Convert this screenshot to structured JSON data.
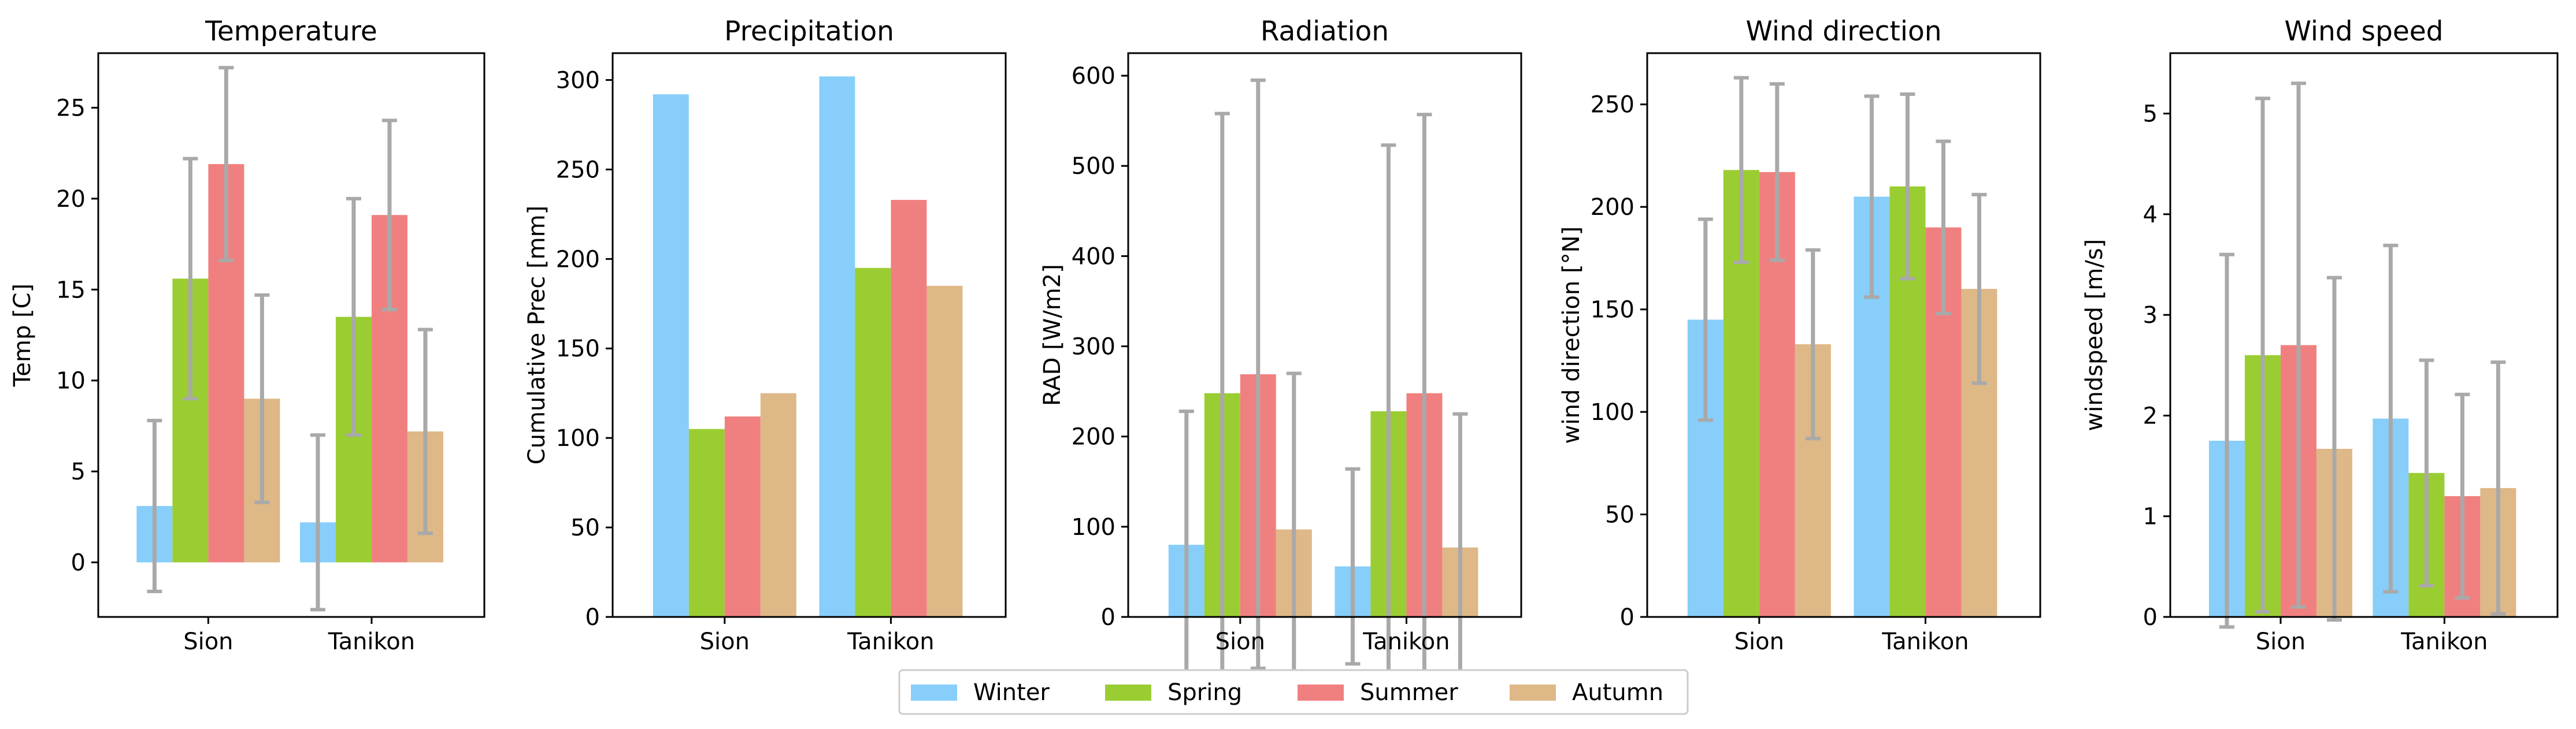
{
  "colors": {
    "Winter": "#87CEFA",
    "Spring": "#9ACD32",
    "Summer": "#F08080",
    "Autumn": "#DEB887",
    "errorbar": "#A9A9A9"
  },
  "legend": {
    "placement": "bottom-center",
    "items": [
      "Winter",
      "Spring",
      "Summer",
      "Autumn"
    ]
  },
  "chart_data": [
    {
      "type": "bar",
      "title": "Temperature",
      "ylabel": "Temp [C]",
      "categories": [
        "Sion",
        "Tanikon"
      ],
      "ylim": [
        -3,
        28
      ],
      "yticks": [
        0,
        5,
        10,
        15,
        20,
        25
      ],
      "series": [
        {
          "name": "Winter",
          "values": [
            3.1,
            2.2
          ],
          "err": [
            4.7,
            4.8
          ]
        },
        {
          "name": "Spring",
          "values": [
            15.6,
            13.5
          ],
          "err": [
            6.6,
            6.5
          ]
        },
        {
          "name": "Summer",
          "values": [
            21.9,
            19.1
          ],
          "err": [
            5.3,
            5.2
          ]
        },
        {
          "name": "Autumn",
          "values": [
            9.0,
            7.2
          ],
          "err": [
            5.7,
            5.6
          ]
        }
      ]
    },
    {
      "type": "bar",
      "title": "Precipitation",
      "ylabel": "Cumulative Prec [mm]",
      "categories": [
        "Sion",
        "Tanikon"
      ],
      "ylim": [
        0,
        315
      ],
      "yticks": [
        0,
        50,
        100,
        150,
        200,
        250,
        300
      ],
      "series": [
        {
          "name": "Winter",
          "values": [
            292,
            302
          ],
          "err": null
        },
        {
          "name": "Spring",
          "values": [
            105,
            195
          ],
          "err": null
        },
        {
          "name": "Summer",
          "values": [
            112,
            233
          ],
          "err": null
        },
        {
          "name": "Autumn",
          "values": [
            125,
            185
          ],
          "err": null
        }
      ]
    },
    {
      "type": "bar",
      "title": "Radiation",
      "ylabel": "RAD [W/m2]",
      "categories": [
        "Sion",
        "Tanikon"
      ],
      "ylim": [
        0,
        625
      ],
      "yticks": [
        0,
        100,
        200,
        300,
        400,
        500,
        600
      ],
      "series": [
        {
          "name": "Winter",
          "values": [
            80,
            56
          ],
          "err": [
            148,
            108
          ]
        },
        {
          "name": "Spring",
          "values": [
            248,
            228
          ],
          "err": [
            310,
            295
          ]
        },
        {
          "name": "Summer",
          "values": [
            269,
            248
          ],
          "err": [
            326,
            309
          ]
        },
        {
          "name": "Autumn",
          "values": [
            97,
            77
          ],
          "err": [
            173,
            148
          ]
        }
      ]
    },
    {
      "type": "bar",
      "title": "Wind direction",
      "ylabel": "wind direction [°N]",
      "categories": [
        "Sion",
        "Tanikon"
      ],
      "ylim": [
        0,
        275
      ],
      "yticks": [
        0,
        50,
        100,
        150,
        200,
        250
      ],
      "series": [
        {
          "name": "Winter",
          "values": [
            145,
            205
          ],
          "err": [
            49,
            49
          ]
        },
        {
          "name": "Spring",
          "values": [
            218,
            210
          ],
          "err": [
            45,
            45
          ]
        },
        {
          "name": "Summer",
          "values": [
            217,
            190
          ],
          "err": [
            43,
            42
          ]
        },
        {
          "name": "Autumn",
          "values": [
            133,
            160
          ],
          "err": [
            46,
            46
          ]
        }
      ]
    },
    {
      "type": "bar",
      "title": "Wind speed",
      "ylabel": "windspeed [m/s]",
      "categories": [
        "Sion",
        "Tanikon"
      ],
      "ylim": [
        0,
        5.6
      ],
      "yticks": [
        0,
        1,
        2,
        3,
        4,
        5
      ],
      "series": [
        {
          "name": "Winter",
          "values": [
            1.75,
            1.97
          ],
          "err": [
            1.85,
            1.72
          ]
        },
        {
          "name": "Spring",
          "values": [
            2.6,
            1.43
          ],
          "err": [
            2.55,
            1.12
          ]
        },
        {
          "name": "Summer",
          "values": [
            2.7,
            1.2
          ],
          "err": [
            2.6,
            1.01
          ]
        },
        {
          "name": "Autumn",
          "values": [
            1.67,
            1.28
          ],
          "err": [
            1.7,
            1.25
          ]
        }
      ]
    }
  ]
}
